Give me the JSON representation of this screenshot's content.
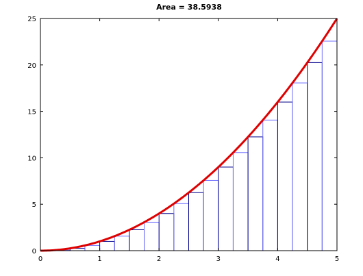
{
  "chart_data": {
    "type": "bar",
    "title": "Area = 38.5938",
    "xlabel": "",
    "ylabel": "",
    "xlim": [
      0,
      5
    ],
    "ylim": [
      0,
      25
    ],
    "xticks": [
      0,
      1,
      2,
      3,
      4,
      5
    ],
    "yticks": [
      0,
      5,
      10,
      15,
      20,
      25
    ],
    "grid": false,
    "legend": "none",
    "rectangles": {
      "width": 0.25,
      "x_left": [
        0,
        0.25,
        0.5,
        0.75,
        1,
        1.25,
        1.5,
        1.75,
        2,
        2.25,
        2.5,
        2.75,
        3,
        3.25,
        3.5,
        3.75,
        4,
        4.25,
        4.5,
        4.75
      ],
      "heights": [
        0,
        0.0625,
        0.25,
        0.5625,
        1,
        1.5625,
        2.25,
        3.0625,
        4,
        5.0625,
        6.25,
        7.5625,
        9,
        10.5625,
        12.25,
        14.0625,
        16,
        18.0625,
        20.25,
        22.5625
      ],
      "colors": [
        "#00008b",
        "#6f6fff"
      ]
    },
    "curve": {
      "function": "x^2",
      "x": [
        0,
        0.25,
        0.5,
        0.75,
        1,
        1.25,
        1.5,
        1.75,
        2,
        2.25,
        2.5,
        2.75,
        3,
        3.25,
        3.5,
        3.75,
        4,
        4.25,
        4.5,
        4.75,
        5
      ],
      "y": [
        0,
        0.0625,
        0.25,
        0.5625,
        1,
        1.5625,
        2.25,
        3.0625,
        4,
        5.0625,
        6.25,
        7.5625,
        9,
        10.5625,
        12.25,
        14.0625,
        16,
        18.0625,
        20.25,
        22.5625,
        25
      ],
      "color": "#e00000"
    }
  }
}
